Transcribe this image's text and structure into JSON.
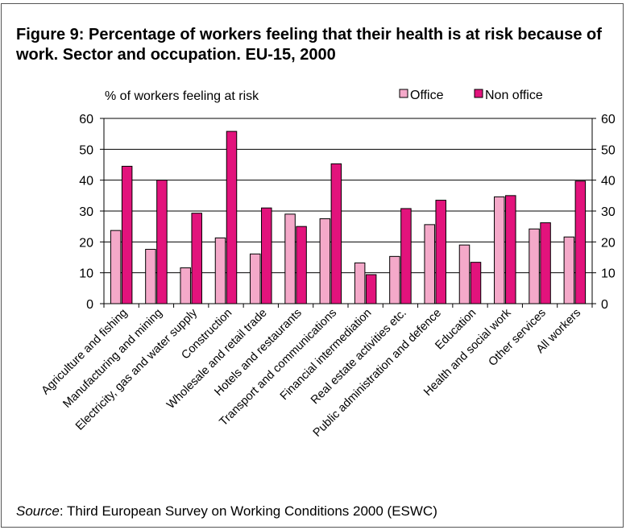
{
  "title": "Figure 9: Percentage of workers feeling that their health is at risk because of work. Sector  and occupation. EU-15, 2000",
  "source": {
    "label": "Source",
    "text": ": Third European Survey on Working Conditions 2000 (ESWC)"
  },
  "chart_data": {
    "type": "bar",
    "ylabel": "% of workers feeling at risk",
    "ylim": [
      0,
      60
    ],
    "yticks": [
      0,
      10,
      20,
      30,
      40,
      50,
      60
    ],
    "grid": true,
    "legend_position": "top-right",
    "categories": [
      "Agriculture and fishing",
      "Manufacturing and mining",
      "Electricity, gas and water supply",
      "Construction",
      "Wholesale and retail trade",
      "Hotels and restaurants",
      "Transport and communications",
      "Financial intermediation",
      "Real estate activities etc.",
      "Public administration and defence",
      "Education",
      "Health and social work",
      "Other services",
      "All workers"
    ],
    "series": [
      {
        "name": "Office",
        "color": "#f4a9c9",
        "values": [
          23.7,
          17.6,
          11.6,
          21.3,
          16.1,
          29,
          27.5,
          13.2,
          15.3,
          25.6,
          19,
          34.6,
          24.2,
          21.6
        ]
      },
      {
        "name": "Non office",
        "color": "#e2137c",
        "values": [
          44.5,
          40,
          29.3,
          55.8,
          31,
          25,
          45.3,
          9.4,
          30.8,
          33.5,
          13.4,
          35,
          26.2,
          39.7
        ]
      }
    ]
  }
}
